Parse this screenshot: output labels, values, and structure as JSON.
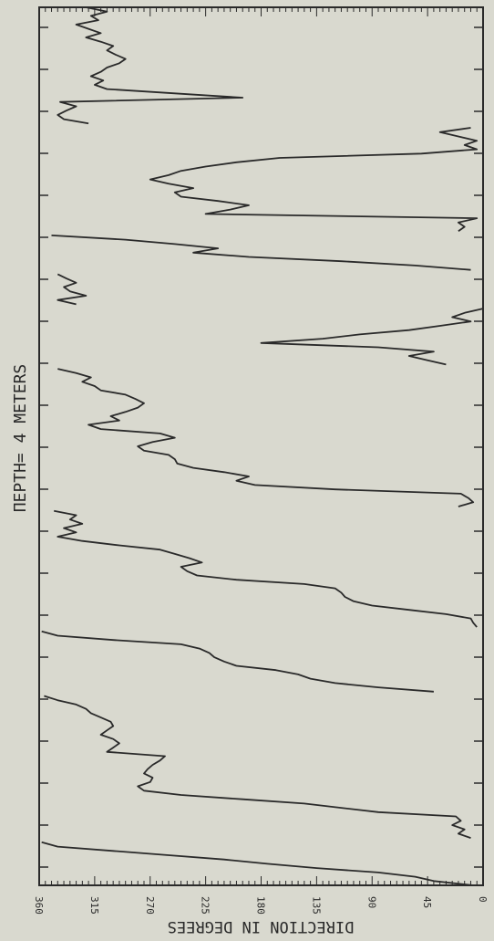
{
  "colors": {
    "background": "#d9d9cf",
    "ink": "#2a2a2a"
  },
  "chart_data": {
    "type": "line",
    "orientation": "rotated-90-cw",
    "title": "DEPTH=    4 METERS",
    "title_rotated": "ΠΕΡΤΗ=    4 ΜΕΤΕRS",
    "ylabel": "DIRECTION IN DEGREES",
    "ylabel_rotated": "DIRECTION IN DEGREES",
    "xlabel": "",
    "ylim": [
      0,
      360
    ],
    "y_ticks": [
      0,
      45,
      90,
      135,
      180,
      225,
      270,
      315,
      360
    ],
    "y_tick_labels": [
      "0",
      "45",
      "90",
      "135",
      "180",
      "225",
      "270",
      "315",
      "360"
    ],
    "grid": false,
    "series": [
      {
        "values": [
          [
            0,
            8
          ],
          [
            1,
            40
          ],
          [
            2,
            55
          ],
          [
            3,
            85
          ],
          [
            4,
            135
          ],
          [
            5,
            175
          ],
          [
            6,
            210
          ],
          [
            7,
            255
          ],
          [
            8,
            300
          ],
          [
            9,
            345
          ],
          [
            10,
            358
          ],
          [
            11,
            10
          ],
          [
            12,
            20
          ],
          [
            13,
            15
          ],
          [
            14,
            25
          ],
          [
            15,
            18
          ],
          [
            16,
            22
          ],
          [
            17,
            85
          ],
          [
            18,
            115
          ],
          [
            19,
            145
          ],
          [
            20,
            195
          ],
          [
            21,
            245
          ],
          [
            22,
            275
          ],
          [
            23,
            280
          ],
          [
            24,
            270
          ],
          [
            25,
            268
          ],
          [
            26,
            275
          ],
          [
            27,
            272
          ],
          [
            28,
            268
          ],
          [
            29,
            262
          ],
          [
            30,
            258
          ],
          [
            31,
            305
          ],
          [
            32,
            300
          ],
          [
            33,
            295
          ],
          [
            34,
            300
          ],
          [
            35,
            310
          ],
          [
            36,
            305
          ],
          [
            37,
            300
          ],
          [
            38,
            302
          ],
          [
            39,
            310
          ],
          [
            40,
            318
          ],
          [
            41,
            322
          ],
          [
            42,
            330
          ],
          [
            43,
            345
          ],
          [
            44,
            356
          ],
          [
            45,
            40
          ],
          [
            46,
            85
          ],
          [
            47,
            120
          ],
          [
            48,
            140
          ],
          [
            49,
            150
          ],
          [
            50,
            168
          ],
          [
            51,
            200
          ],
          [
            52,
            210
          ],
          [
            53,
            218
          ],
          [
            54,
            222
          ],
          [
            55,
            230
          ],
          [
            56,
            245
          ],
          [
            57,
            300
          ],
          [
            58,
            345
          ],
          [
            59,
            358
          ],
          [
            60,
            5
          ],
          [
            61,
            8
          ],
          [
            62,
            10
          ],
          [
            63,
            30
          ],
          [
            64,
            60
          ],
          [
            65,
            90
          ],
          [
            66,
            105
          ],
          [
            67,
            112
          ],
          [
            68,
            115
          ],
          [
            69,
            120
          ],
          [
            70,
            145
          ],
          [
            71,
            200
          ],
          [
            72,
            232
          ],
          [
            73,
            240
          ],
          [
            74,
            245
          ],
          [
            75,
            228
          ],
          [
            76,
            238
          ],
          [
            77,
            250
          ],
          [
            78,
            262
          ],
          [
            79,
            295
          ],
          [
            80,
            325
          ],
          [
            81,
            345
          ],
          [
            82,
            330
          ],
          [
            83,
            340
          ],
          [
            84,
            325
          ],
          [
            85,
            335
          ],
          [
            86,
            330
          ],
          [
            87,
            348
          ],
          [
            88,
            20
          ],
          [
            89,
            8
          ],
          [
            90,
            12
          ],
          [
            91,
            18
          ],
          [
            92,
            120
          ],
          [
            93,
            185
          ],
          [
            94,
            200
          ],
          [
            95,
            190
          ],
          [
            96,
            210
          ],
          [
            97,
            235
          ],
          [
            98,
            248
          ],
          [
            99,
            250
          ],
          [
            100,
            255
          ],
          [
            101,
            275
          ],
          [
            102,
            280
          ],
          [
            103,
            268
          ],
          [
            104,
            250
          ],
          [
            105,
            262
          ],
          [
            106,
            310
          ],
          [
            107,
            320
          ],
          [
            108,
            295
          ],
          [
            109,
            302
          ],
          [
            110,
            290
          ],
          [
            111,
            280
          ],
          [
            112,
            275
          ],
          [
            113,
            282
          ],
          [
            114,
            290
          ],
          [
            115,
            310
          ],
          [
            116,
            315
          ],
          [
            117,
            325
          ],
          [
            118,
            318
          ],
          [
            119,
            330
          ],
          [
            120,
            345
          ],
          [
            121,
            30
          ],
          [
            122,
            45
          ],
          [
            123,
            60
          ],
          [
            124,
            40
          ],
          [
            125,
            85
          ],
          [
            126,
            180
          ],
          [
            127,
            130
          ],
          [
            128,
            100
          ],
          [
            129,
            60
          ],
          [
            130,
            35
          ],
          [
            131,
            10
          ],
          [
            132,
            25
          ],
          [
            133,
            15
          ],
          [
            134,
            0
          ],
          [
            135,
            330
          ],
          [
            136,
            345
          ],
          [
            137,
            322
          ],
          [
            138,
            335
          ],
          [
            139,
            340
          ],
          [
            140,
            330
          ],
          [
            141,
            338
          ],
          [
            142,
            345
          ],
          [
            143,
            10
          ],
          [
            144,
            55
          ],
          [
            145,
            115
          ],
          [
            146,
            190
          ],
          [
            147,
            235
          ],
          [
            148,
            215
          ],
          [
            149,
            250
          ],
          [
            150,
            290
          ],
          [
            151,
            350
          ],
          [
            152,
            20
          ],
          [
            153,
            15
          ],
          [
            154,
            20
          ],
          [
            155,
            5
          ],
          [
            156,
            225
          ],
          [
            157,
            205
          ],
          [
            158,
            190
          ],
          [
            159,
            215
          ],
          [
            160,
            245
          ],
          [
            161,
            250
          ],
          [
            162,
            235
          ],
          [
            163,
            255
          ],
          [
            164,
            270
          ],
          [
            165,
            255
          ],
          [
            166,
            245
          ],
          [
            167,
            225
          ],
          [
            168,
            200
          ],
          [
            169,
            165
          ],
          [
            170,
            50
          ],
          [
            171,
            5
          ],
          [
            172,
            15
          ],
          [
            173,
            5
          ],
          [
            174,
            20
          ],
          [
            175,
            35
          ],
          [
            176,
            10
          ],
          [
            177,
            320
          ],
          [
            178,
            340
          ],
          [
            179,
            345
          ],
          [
            180,
            338
          ],
          [
            181,
            330
          ],
          [
            182,
            343
          ],
          [
            183,
            195
          ],
          [
            184,
            250
          ],
          [
            185,
            305
          ],
          [
            186,
            315
          ],
          [
            187,
            308
          ],
          [
            188,
            318
          ],
          [
            189,
            310
          ],
          [
            190,
            305
          ],
          [
            191,
            295
          ],
          [
            192,
            290
          ],
          [
            193,
            298
          ],
          [
            194,
            305
          ],
          [
            195,
            300
          ],
          [
            196,
            310
          ],
          [
            197,
            322
          ],
          [
            198,
            310
          ],
          [
            199,
            320
          ],
          [
            200,
            330
          ],
          [
            201,
            312
          ],
          [
            202,
            318
          ],
          [
            203,
            305
          ],
          [
            204,
            322
          ]
        ]
      }
    ]
  }
}
